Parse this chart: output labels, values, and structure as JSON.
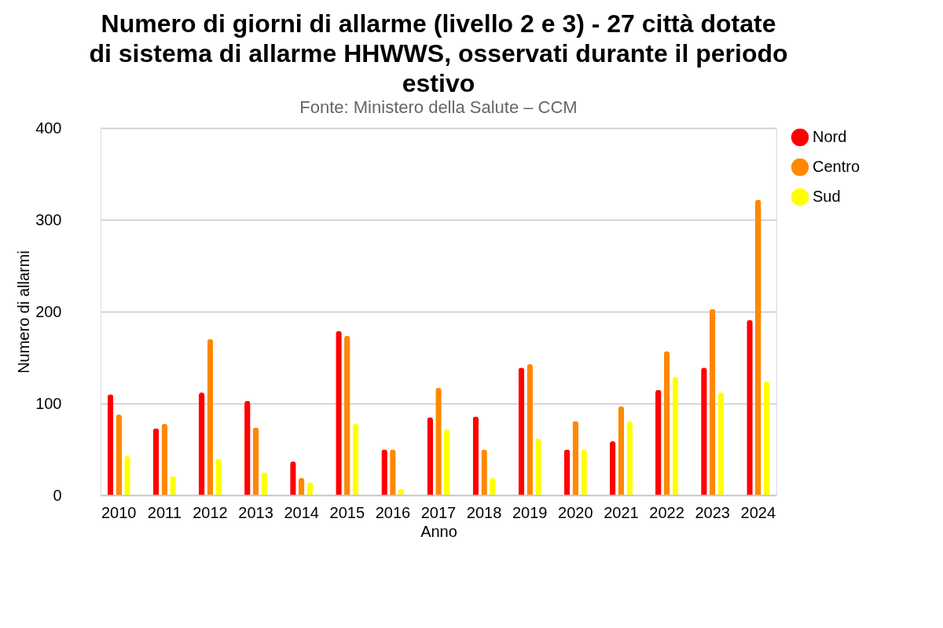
{
  "chart_data": {
    "type": "bar",
    "title": [
      "Numero di giorni di allarme (livello 2 e 3) - 27 città dotate",
      "di sistema di allarme HHWWS, osservati durante il periodo",
      "estivo"
    ],
    "subtitle": "Fonte: Ministero della Salute – CCM",
    "xlabel": "Anno",
    "ylabel": "Numero di allarmi",
    "categories": [
      "2010",
      "2011",
      "2012",
      "2013",
      "2014",
      "2015",
      "2016",
      "2017",
      "2018",
      "2019",
      "2020",
      "2021",
      "2022",
      "2023",
      "2024"
    ],
    "series": [
      {
        "name": "Nord",
        "color": "#ff0000",
        "values": [
          110,
          73,
          112,
          103,
          37,
          179,
          50,
          85,
          86,
          139,
          50,
          59,
          115,
          139,
          191
        ]
      },
      {
        "name": "Centro",
        "color": "#ff8800",
        "values": [
          88,
          78,
          170,
          74,
          19,
          174,
          50,
          117,
          50,
          143,
          81,
          97,
          157,
          203,
          322
        ]
      },
      {
        "name": "Sud",
        "color": "#ffff00",
        "values": [
          43,
          21,
          40,
          25,
          14,
          78,
          7,
          72,
          19,
          62,
          50,
          81,
          129,
          112,
          124
        ]
      }
    ],
    "ylim": [
      0,
      400
    ],
    "yticks": [
      0,
      100,
      200,
      300,
      400
    ],
    "grid": "y",
    "legend": "right"
  }
}
